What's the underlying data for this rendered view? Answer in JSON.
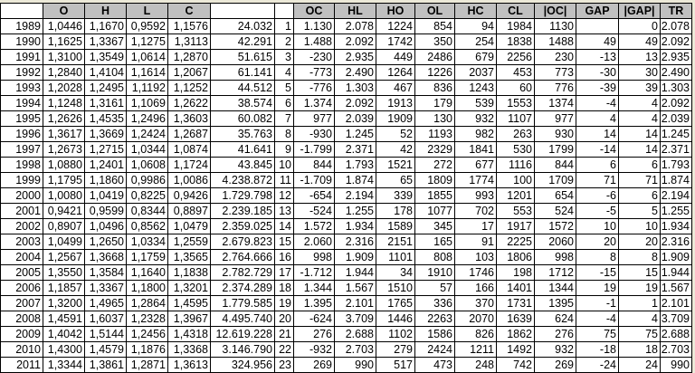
{
  "headers": [
    "",
    "O",
    "H",
    "L",
    "C",
    "",
    "",
    "OC",
    "HL",
    "HO",
    "OL",
    "HC",
    "CL",
    "|OC|",
    "GAP",
    "|GAP|",
    "TR"
  ],
  "header_colors": {
    "shaded": "#c0c0c0",
    "plain": "#ffffff"
  },
  "rows": [
    [
      "1989",
      "1,0446",
      "1,1670",
      "0,9592",
      "1,1576",
      "24.032",
      "1",
      "1.130",
      "2.078",
      "1224",
      "854",
      "94",
      "1984",
      "1130",
      "",
      "0",
      "2.078"
    ],
    [
      "1990",
      "1,1625",
      "1,3367",
      "1,1275",
      "1,3113",
      "42.291",
      "2",
      "1.488",
      "2.092",
      "1742",
      "350",
      "254",
      "1838",
      "1488",
      "49",
      "49",
      "2.092"
    ],
    [
      "1991",
      "1,3100",
      "1,3549",
      "1,0614",
      "1,2870",
      "51.615",
      "3",
      "-230",
      "2.935",
      "449",
      "2486",
      "679",
      "2256",
      "230",
      "-13",
      "13",
      "2.935"
    ],
    [
      "1992",
      "1,2840",
      "1,4104",
      "1,1614",
      "1,2067",
      "61.141",
      "4",
      "-773",
      "2.490",
      "1264",
      "1226",
      "2037",
      "453",
      "773",
      "-30",
      "30",
      "2.490"
    ],
    [
      "1993",
      "1,2028",
      "1,2495",
      "1,1192",
      "1,1252",
      "44.512",
      "5",
      "-776",
      "1.303",
      "467",
      "836",
      "1243",
      "60",
      "776",
      "-39",
      "39",
      "1.303"
    ],
    [
      "1994",
      "1,1248",
      "1,3161",
      "1,1069",
      "1,2622",
      "38.574",
      "6",
      "1.374",
      "2.092",
      "1913",
      "179",
      "539",
      "1553",
      "1374",
      "-4",
      "4",
      "2.092"
    ],
    [
      "1995",
      "1,2626",
      "1,4535",
      "1,2496",
      "1,3603",
      "60.082",
      "7",
      "977",
      "2.039",
      "1909",
      "130",
      "932",
      "1107",
      "977",
      "4",
      "4",
      "2.039"
    ],
    [
      "1996",
      "1,3617",
      "1,3669",
      "1,2424",
      "1,2687",
      "35.763",
      "8",
      "-930",
      "1.245",
      "52",
      "1193",
      "982",
      "263",
      "930",
      "14",
      "14",
      "1.245"
    ],
    [
      "1997",
      "1,2673",
      "1,2715",
      "1,0344",
      "1,0874",
      "41.641",
      "9",
      "-1.799",
      "2.371",
      "42",
      "2329",
      "1841",
      "530",
      "1799",
      "-14",
      "14",
      "2.371"
    ],
    [
      "1998",
      "1,0880",
      "1,2401",
      "1,0608",
      "1,1724",
      "43.845",
      "10",
      "844",
      "1.793",
      "1521",
      "272",
      "677",
      "1116",
      "844",
      "6",
      "6",
      "1.793"
    ],
    [
      "1999",
      "1,1795",
      "1,1860",
      "0,9986",
      "1,0086",
      "4.238.872",
      "11",
      "-1.709",
      "1.874",
      "65",
      "1809",
      "1774",
      "100",
      "1709",
      "71",
      "71",
      "1.874"
    ],
    [
      "2000",
      "1,0080",
      "1,0419",
      "0,8225",
      "0,9426",
      "1.729.798",
      "12",
      "-654",
      "2.194",
      "339",
      "1855",
      "993",
      "1201",
      "654",
      "-6",
      "6",
      "2.194"
    ],
    [
      "2001",
      "0,9421",
      "0,9599",
      "0,8344",
      "0,8897",
      "2.239.185",
      "13",
      "-524",
      "1.255",
      "178",
      "1077",
      "702",
      "553",
      "524",
      "-5",
      "5",
      "1.255"
    ],
    [
      "2002",
      "0,8907",
      "1,0496",
      "0,8562",
      "1,0479",
      "2.359.025",
      "14",
      "1.572",
      "1.934",
      "1589",
      "345",
      "17",
      "1917",
      "1572",
      "10",
      "10",
      "1.934"
    ],
    [
      "2003",
      "1,0499",
      "1,2650",
      "1,0334",
      "1,2559",
      "2.679.823",
      "15",
      "2.060",
      "2.316",
      "2151",
      "165",
      "91",
      "2225",
      "2060",
      "20",
      "20",
      "2.316"
    ],
    [
      "2004",
      "1,2567",
      "1,3668",
      "1,1759",
      "1,3565",
      "2.764.666",
      "16",
      "998",
      "1.909",
      "1101",
      "808",
      "103",
      "1806",
      "998",
      "8",
      "8",
      "1.909"
    ],
    [
      "2005",
      "1,3550",
      "1,3584",
      "1,1640",
      "1,1838",
      "2.782.729",
      "17",
      "-1.712",
      "1.944",
      "34",
      "1910",
      "1746",
      "198",
      "1712",
      "-15",
      "15",
      "1.944"
    ],
    [
      "2006",
      "1,1857",
      "1,3367",
      "1,1800",
      "1,3201",
      "2.374.289",
      "18",
      "1.344",
      "1.567",
      "1510",
      "57",
      "166",
      "1401",
      "1344",
      "19",
      "19",
      "1.567"
    ],
    [
      "2007",
      "1,3200",
      "1,4965",
      "1,2864",
      "1,4595",
      "1.779.585",
      "19",
      "1.395",
      "2.101",
      "1765",
      "336",
      "370",
      "1731",
      "1395",
      "-1",
      "1",
      "2.101"
    ],
    [
      "2008",
      "1,4591",
      "1,6037",
      "1,2328",
      "1,3967",
      "4.495.740",
      "20",
      "-624",
      "3.709",
      "1446",
      "2263",
      "2070",
      "1639",
      "624",
      "-4",
      "4",
      "3.709"
    ],
    [
      "2009",
      "1,4042",
      "1,5144",
      "1,2456",
      "1,4318",
      "12.619.228",
      "21",
      "276",
      "2.688",
      "1102",
      "1586",
      "826",
      "1862",
      "276",
      "75",
      "75",
      "2.688"
    ],
    [
      "2010",
      "1,4300",
      "1,4579",
      "1,1876",
      "1,3368",
      "3.146.790",
      "22",
      "-932",
      "2.703",
      "279",
      "2424",
      "1211",
      "1492",
      "932",
      "-18",
      "18",
      "2.703"
    ],
    [
      "2011",
      "1,3344",
      "1,3861",
      "1,2871",
      "1,3613",
      "324.956",
      "23",
      "269",
      "990",
      "517",
      "473",
      "248",
      "742",
      "269",
      "-24",
      "24",
      "990"
    ]
  ]
}
